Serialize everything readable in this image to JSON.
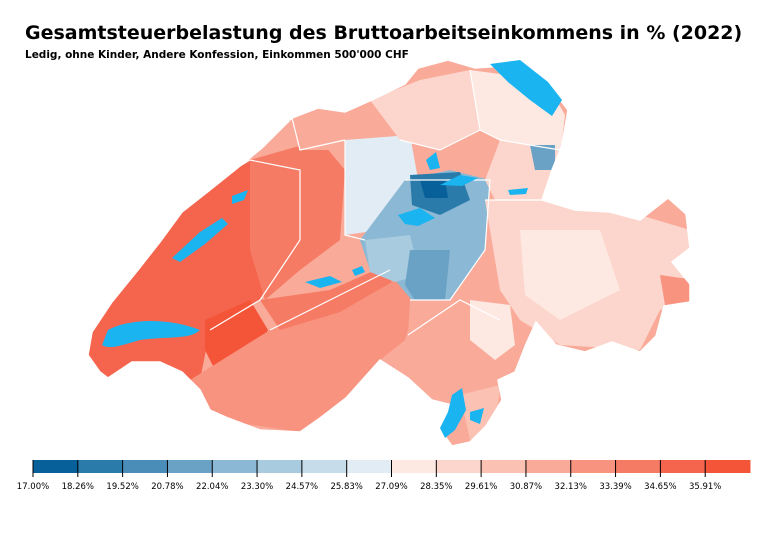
{
  "title": "Gesamtsteuerbelastung des Bruttoarbeitseinkommens in % (2022)",
  "subtitle": "Ledig, ohne Kinder, Andere Konfession, Einkommen 500'000 CHF",
  "colors": {
    "lake": "#1ab4f0",
    "border": "#ffffff"
  },
  "legend": {
    "min": 17.0,
    "max": 37.17,
    "colors": [
      "#08609a",
      "#2a7aaa",
      "#4a8db8",
      "#6aa2c6",
      "#8bb8d4",
      "#a9cbe0",
      "#c6dcea",
      "#e2ecf4",
      "#fde8e2",
      "#fcd6cc",
      "#fbc2b4",
      "#f9aa99",
      "#f8937f",
      "#f67b65",
      "#f5654d",
      "#f45438"
    ],
    "ticks": [
      "17.00%",
      "18.26%",
      "19.52%",
      "20.78%",
      "22.04%",
      "23.30%",
      "24.57%",
      "25.83%",
      "27.09%",
      "28.35%",
      "29.61%",
      "30.87%",
      "32.13%",
      "33.39%",
      "34.65%",
      "35.91%"
    ]
  }
}
